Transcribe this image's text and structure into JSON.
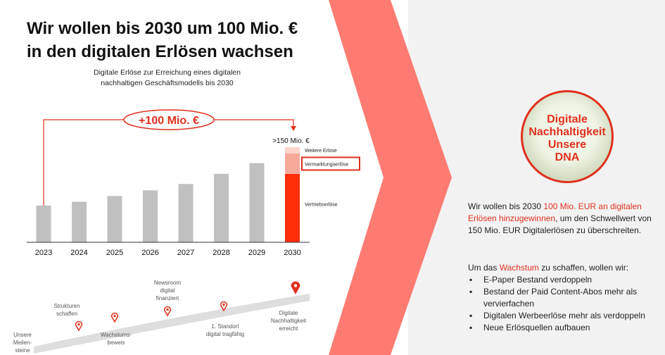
{
  "headline": {
    "line1": "Wir wollen bis 2030 um 100 Mio. €",
    "line2": "in den digitalen Erlösen wachsen"
  },
  "subtitle": {
    "line1": "Digitale Erlöse zur Erreichung eines digitalen",
    "line2": "nachhaltigen Geschäftsmodells bis 2030"
  },
  "chart_data": {
    "type": "bar",
    "title": "",
    "categories": [
      "2023",
      "2024",
      "2025",
      "2026",
      "2027",
      "2028",
      "2029",
      "2030"
    ],
    "values": [
      58,
      64,
      73,
      82,
      92,
      108,
      125,
      150
    ],
    "stacked_2030": [
      {
        "name": "Vertriebserlöse",
        "value": 108
      },
      {
        "name": "Vermarktungserlöse",
        "value": 32
      },
      {
        "name": "Weitere Erlöse",
        "value": 10
      }
    ],
    "annotation_total": ">150 Mio. €",
    "growth_label": "+100 Mio. €",
    "colors": {
      "bar": "#c0c0c0",
      "vertrieb": "#ff2d0a",
      "vermarktung": "#f7a99a",
      "weitere": "#fbd3cb",
      "accent": "#e0301e"
    },
    "grid": false
  },
  "roadmap": {
    "milestones": [
      {
        "label": "Unsere Meilen-steine",
        "lines": [
          "Unsere",
          "Meilen-",
          "steine"
        ]
      },
      {
        "label": "Strukturen schaffen",
        "lines": [
          "Strukturen",
          "schaffen"
        ]
      },
      {
        "label": "Wachstums-beweis",
        "lines": [
          "Wachstums-",
          "beweis"
        ]
      },
      {
        "label": "Newsroom digital finanziert",
        "lines": [
          "Newsroom",
          "digital",
          "finanziert"
        ]
      },
      {
        "label": "1. Standort digital tragfähig",
        "lines": [
          "1. Standort",
          "digital tragfähig"
        ]
      },
      {
        "label": "Digitale Nachhaltigkeit erreicht",
        "lines": [
          "Digitale",
          "Nachhaltigkeit",
          "erreicht"
        ]
      }
    ]
  },
  "badge": {
    "line1": "Digitale",
    "line2": "Nachhaltigkeit",
    "line3": "Unsere",
    "line4": "DNA"
  },
  "paragraph": {
    "pre": "Wir wollen bis 2030 ",
    "highlight": "100 Mio. EUR an digitalen Erlösen hinzugewinnen",
    "post": ", um den Schwellwert von 150 Mio. EUR Digitalerlösen zu überschreiten."
  },
  "growth": {
    "pre": "Um das ",
    "highlight": "Wachstum",
    "post": " zu schaffen, wollen wir:"
  },
  "bullets": [
    "E-Paper Bestand verdoppeln",
    "Bestand der Paid Content-Abos mehr als vervierfachen",
    "Digitalen Werbeerlöse mehr als verdoppeln",
    "Neue Erlösquellen aufbauen"
  ]
}
